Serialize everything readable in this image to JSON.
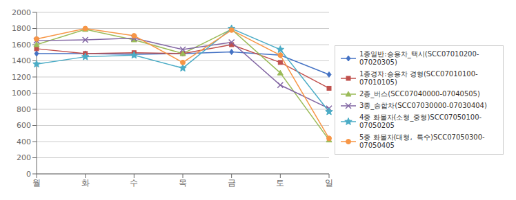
{
  "chart_data": {
    "type": "line",
    "categories": [
      "월",
      "화",
      "수",
      "목",
      "금",
      "토",
      "일"
    ],
    "series": [
      {
        "name": "1종일반:승용차_택시(SCC07010200-\n07020305)",
        "color": "#4472C4",
        "marker": "diamond",
        "values": [
          1490,
          1490,
          1480,
          1490,
          1510,
          1470,
          1230
        ]
      },
      {
        "name": "1종경자:승용차 경형(SCC07010100-\n07010105)",
        "color": "#C0504D",
        "marker": "square",
        "values": [
          1550,
          1490,
          1500,
          1490,
          1600,
          1380,
          1060
        ]
      },
      {
        "name": "2종_버스(SCC07040000-07040505)",
        "color": "#9BBB59",
        "marker": "triangle",
        "values": [
          1600,
          1790,
          1660,
          1490,
          1790,
          1250,
          420
        ]
      },
      {
        "name": "3종_승합차(SCC07030000-07030404)",
        "color": "#8064A2",
        "marker": "x",
        "values": [
          1650,
          1660,
          1680,
          1540,
          1630,
          1100,
          810
        ]
      },
      {
        "name": "4종 화물차(소형_중형)SCC07050100-\n07050205",
        "color": "#4BACC6",
        "marker": "star",
        "values": [
          1360,
          1450,
          1470,
          1310,
          1800,
          1540,
          770
        ]
      },
      {
        "name": "5종 화물차(대형,  특수)SCC07050300-\n07050405",
        "color": "#F79646",
        "marker": "circle",
        "values": [
          1670,
          1800,
          1710,
          1380,
          1780,
          1470,
          440
        ]
      }
    ],
    "ylim": [
      0,
      2000
    ],
    "yticks": [
      0,
      200,
      400,
      600,
      800,
      1000,
      1200,
      1400,
      1600,
      1800,
      2000
    ],
    "grid": true,
    "legend": "right"
  }
}
